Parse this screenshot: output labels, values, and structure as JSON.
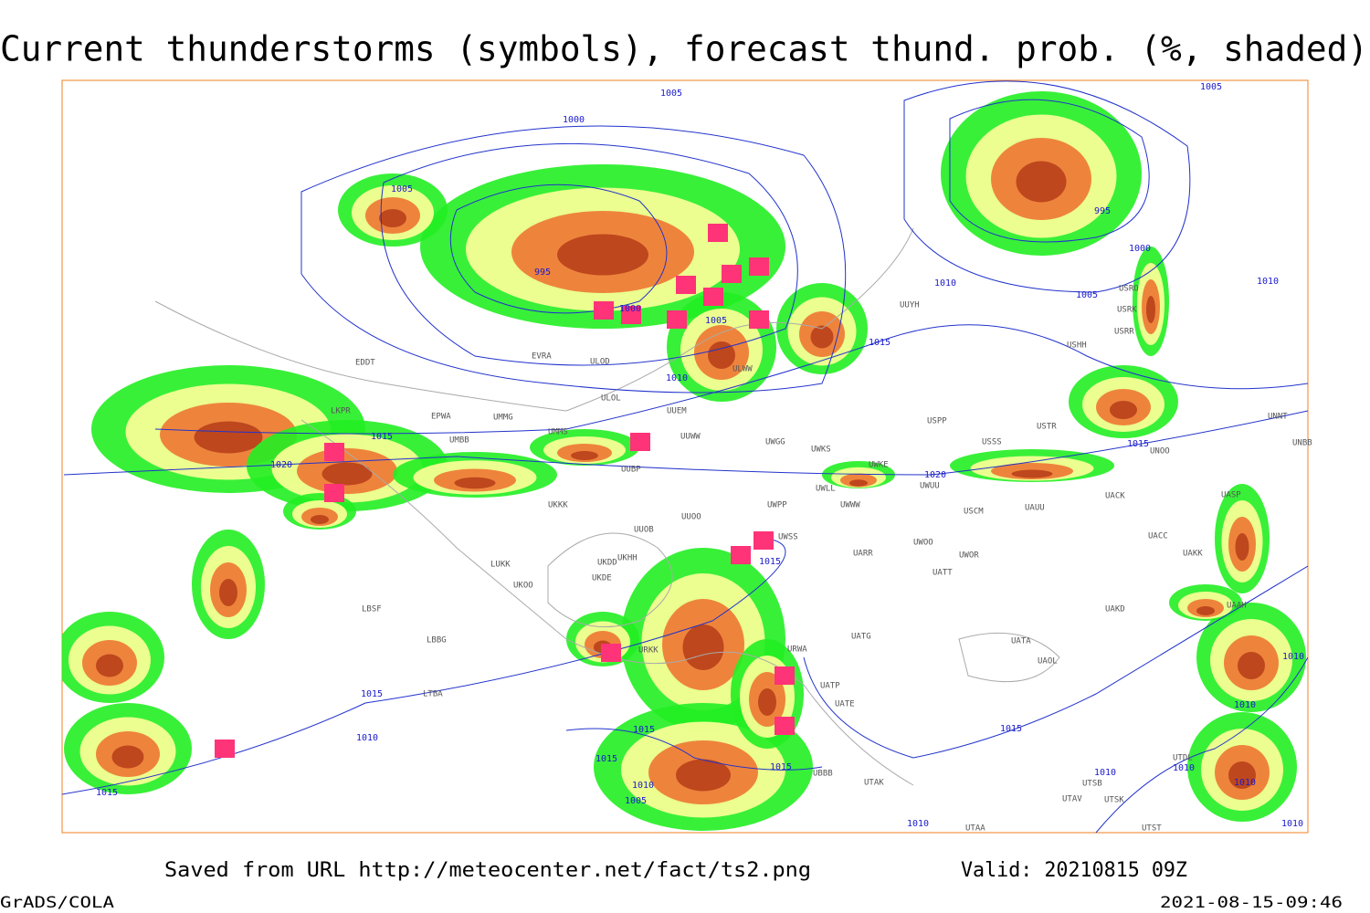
{
  "header": {
    "title": "Current thunderstorms (symbols), forecast thund. prob. (%, shaded)"
  },
  "footer": {
    "saved": "Saved from URL http://meteocenter.net/fact/ts2.png",
    "valid": "Valid: 20210815 09Z",
    "software": "GrADS/COLA",
    "timestamp": "2021-08-15-09:46"
  },
  "isobar_labels": [
    "1005",
    "1000",
    "1005",
    "995",
    "1000",
    "1005",
    "1010",
    "1015",
    "1015",
    "1020",
    "1010",
    "1005",
    "1000",
    "995",
    "1005",
    "1010",
    "1015",
    "1020",
    "1015",
    "1015",
    "1010",
    "1015",
    "1015",
    "1015",
    "1010",
    "1005",
    "1015",
    "1010",
    "1015",
    "1010",
    "1010",
    "1010",
    "1010",
    "1010",
    "1010"
  ],
  "stations": [
    "EPWA",
    "UMMG",
    "LKPR",
    "UMBB",
    "UMMS",
    "ULOL",
    "ULOD",
    "EVRA",
    "ULWW",
    "UUEM",
    "UUWW",
    "UUBP",
    "UKKK",
    "UUOO",
    "UUOB",
    "UKHH",
    "UKDD",
    "UKDE",
    "LUKK",
    "UKOO",
    "LBSF",
    "LBBG",
    "LTBA",
    "URKK",
    "URWA",
    "UATG",
    "UATA",
    "UAOL",
    "UAKD",
    "UATT",
    "UWOR",
    "UWOO",
    "UARR",
    "USCM",
    "UAUU",
    "UACK",
    "UASP",
    "UACC",
    "UAKK",
    "UAAH",
    "UNNT",
    "UNBB",
    "UNOO",
    "USTR",
    "USSS",
    "USPP",
    "UWKS",
    "UWGG",
    "UWPP",
    "UWSS",
    "UWWW",
    "UWLL",
    "UWKE",
    "UWUU",
    "UUYH",
    "USHH",
    "USRR",
    "USRK",
    "USRO",
    "UATE",
    "UATP",
    "UTAK",
    "UTAA",
    "UTSB",
    "UTAV",
    "UTSK",
    "UTST",
    "UBBB",
    "UTDL",
    "EDDT"
  ]
}
